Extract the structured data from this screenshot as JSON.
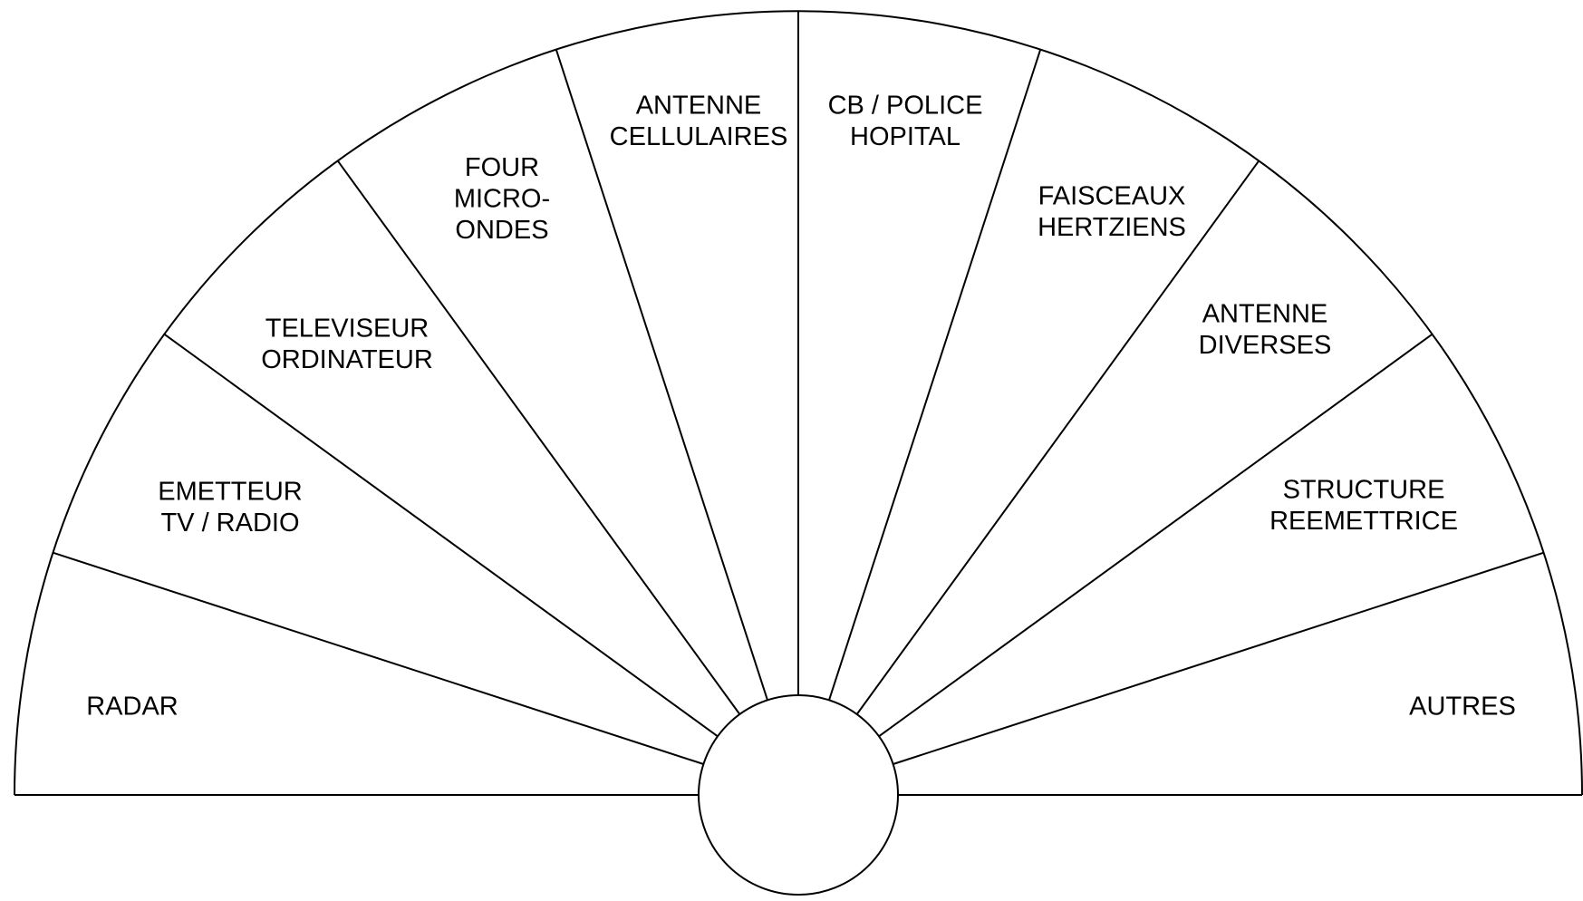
{
  "sectors": [
    {
      "lines": [
        "RADAR"
      ]
    },
    {
      "lines": [
        "EMETTEUR",
        "TV / RADIO"
      ]
    },
    {
      "lines": [
        "TELEVISEUR",
        "ORDINATEUR"
      ]
    },
    {
      "lines": [
        "FOUR",
        "MICRO-",
        "ONDES"
      ]
    },
    {
      "lines": [
        "ANTENNE",
        "CELLULAIRES"
      ]
    },
    {
      "lines": [
        "CB / POLICE",
        "HOPITAL"
      ]
    },
    {
      "lines": [
        "FAISCEAUX",
        "HERTZIENS"
      ]
    },
    {
      "lines": [
        "ANTENNE",
        "DIVERSES"
      ]
    },
    {
      "lines": [
        "STRUCTURE",
        "REEMETTRICE"
      ]
    },
    {
      "lines": [
        "AUTRES"
      ]
    }
  ]
}
